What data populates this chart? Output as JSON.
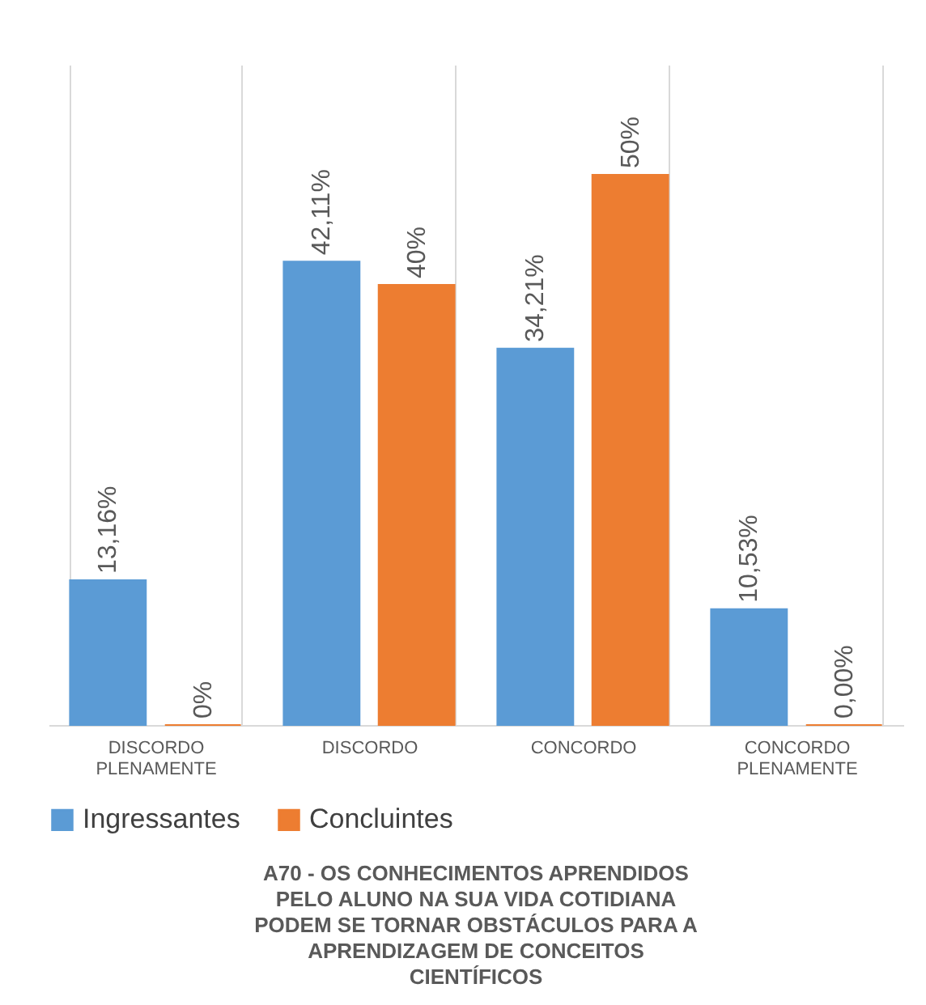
{
  "chart_data": {
    "type": "bar",
    "title": "A70 - OS CONHECIMENTOS APRENDIDOS PELO ALUNO NA SUA VIDA COTIDIANA PODEM SE TORNAR OBSTÁCULOS PARA A APRENDIZAGEM DE CONCEITOS CIENTÍFICOS",
    "categories": [
      "DISCORDO PLENAMENTE",
      "DISCORDO",
      "CONCORDO",
      "CONCORDO PLENAMENTE"
    ],
    "series": [
      {
        "name": "Ingressantes",
        "color": "#5b9bd5",
        "values": [
          13.16,
          42.11,
          34.21,
          10.53
        ],
        "value_labels": [
          "13,16%",
          "42,11%",
          "34,21%",
          "10,53%"
        ]
      },
      {
        "name": "Concluintes",
        "color": "#ed7d31",
        "values": [
          0,
          40,
          50,
          0
        ],
        "value_labels": [
          "0%",
          "40%",
          "50%",
          "0,00%"
        ]
      }
    ],
    "ylim": [
      0,
      60
    ],
    "grid": "x",
    "legend": "bottom"
  }
}
